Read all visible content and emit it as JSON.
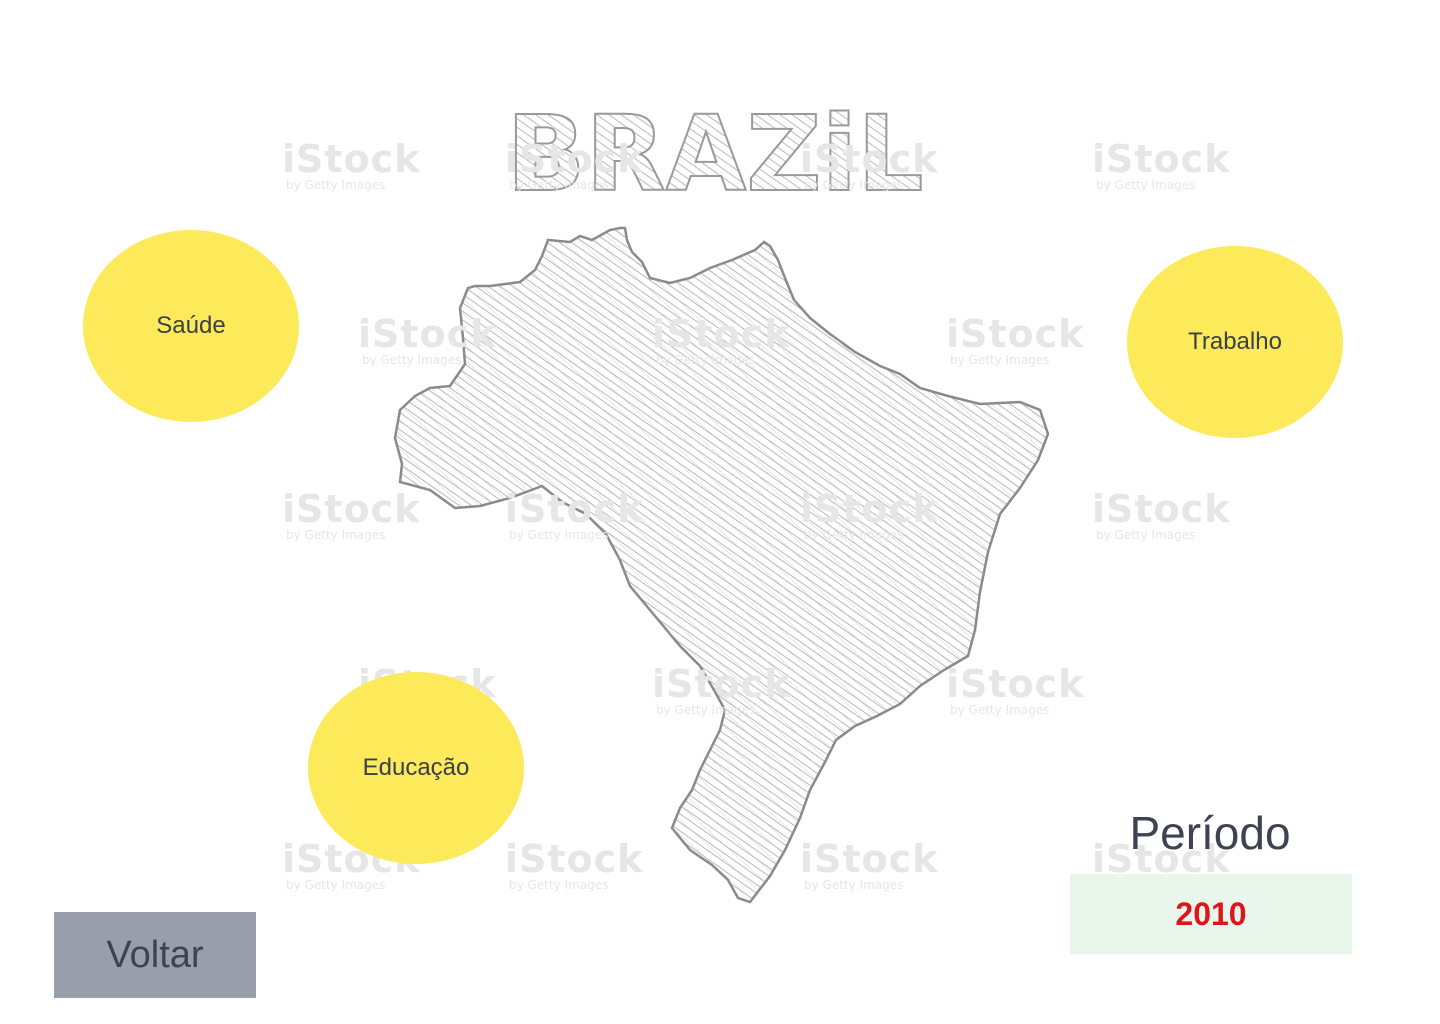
{
  "map": {
    "title": "BRAZiL",
    "watermark_main": "iStock",
    "watermark_sub": "by Getty Images"
  },
  "topics": {
    "saude": "Saúde",
    "trabalho": "Trabalho",
    "educacao": "Educação"
  },
  "periodo": {
    "label": "Período",
    "value": "2010"
  },
  "nav": {
    "back_label": "Voltar"
  },
  "colors": {
    "topic_fill": "#fcea5a",
    "period_value": "#e0141b",
    "period_box": "#e9f6ec",
    "back_button": "#989fab"
  }
}
